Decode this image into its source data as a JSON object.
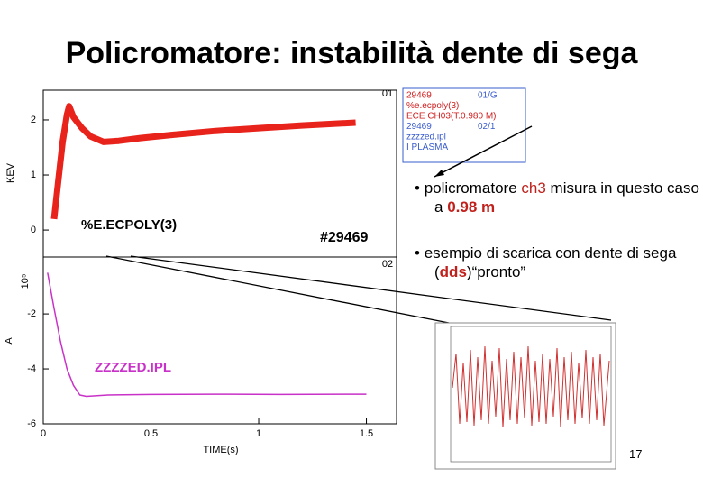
{
  "title": "Policromatore: instabilità dente di sega",
  "upper_plot": {
    "ylabel": "KEV",
    "marker": "01",
    "label": "%E.ECPOLY(3)",
    "shot": "#29469",
    "ylim": [
      -0.49,
      2.54
    ],
    "yticks": [
      0,
      1,
      2
    ],
    "xlim": [
      0,
      1.64
    ],
    "series": {
      "color": "#e8231c",
      "x": [
        0.05,
        0.07,
        0.09,
        0.11,
        0.12,
        0.14,
        0.18,
        0.22,
        0.28,
        0.35,
        0.45,
        0.6,
        0.8,
        1.0,
        1.2,
        1.45
      ],
      "values": [
        0.2,
        0.9,
        1.6,
        2.1,
        2.25,
        2.05,
        1.85,
        1.7,
        1.6,
        1.62,
        1.67,
        1.73,
        1.8,
        1.85,
        1.9,
        1.95
      ]
    }
  },
  "lower_plot": {
    "ylabel": "A",
    "scale_label": "10⁵",
    "marker": "02",
    "label": "ZZZZED.IPL",
    "ylim": [
      -6,
      0.07
    ],
    "yticks": [
      -2,
      -4,
      -6
    ],
    "xlim": [
      0,
      1.64
    ],
    "xticks": [
      0,
      0.5,
      1,
      1.5
    ],
    "xlabel": "TIME(s)",
    "series": {
      "color": "#c832c8",
      "x": [
        0.02,
        0.05,
        0.08,
        0.11,
        0.14,
        0.17,
        0.2,
        0.3,
        0.5,
        0.8,
        1.1,
        1.5
      ],
      "values": [
        -0.5,
        -1.8,
        -3.0,
        -4.0,
        -4.6,
        -4.95,
        -5.0,
        -4.95,
        -4.93,
        -4.92,
        -4.93,
        -4.92
      ]
    }
  },
  "legend": {
    "lines": [
      "29469",
      "01/G",
      "%e.ecpoly(3)",
      "ECE CH03(T.0.980 M)",
      "29469",
      "02/1",
      "zzzzed.ipl",
      "I PLASMA"
    ]
  },
  "bullets": [
    {
      "parts": [
        "policromatore ",
        "ch3",
        " misura in questo caso a ",
        "0.98 m"
      ]
    },
    {
      "parts": [
        "esempio di scarica con dente di sega (",
        "dds",
        ")“pronto”"
      ]
    }
  ],
  "page_number": "17"
}
